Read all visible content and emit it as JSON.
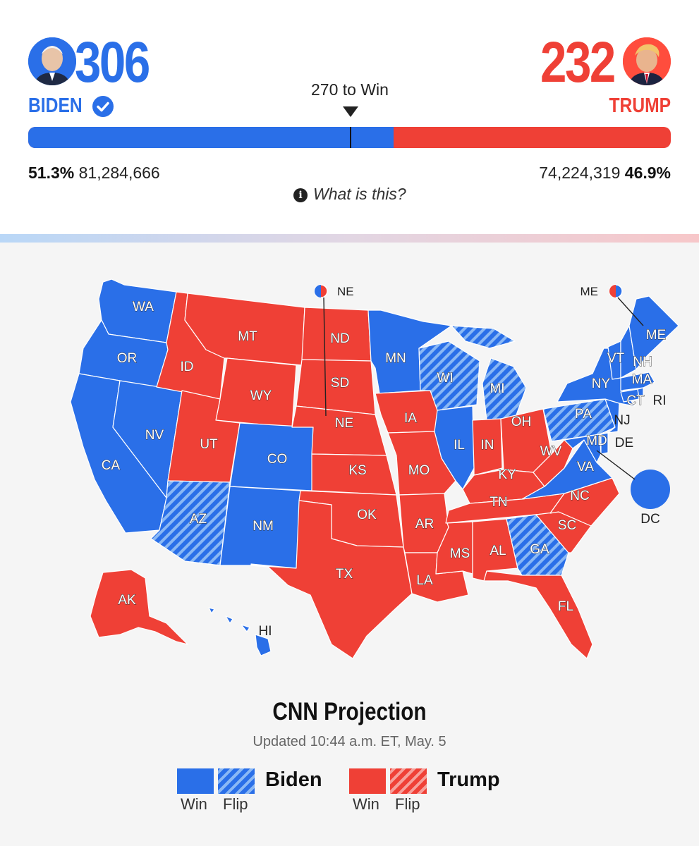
{
  "biden": {
    "electoral_votes": "306",
    "name": "BIDEN",
    "percent": "51.3%",
    "votes": "81,284,666",
    "color": "#2a6fe8",
    "winner_icon": "check-circle-icon"
  },
  "trump": {
    "electoral_votes": "232",
    "name": "TRUMP",
    "percent": "46.9%",
    "votes": "74,224,319",
    "color": "#ef4036"
  },
  "threshold": {
    "label": "270 to Win",
    "value": 270,
    "total": 538
  },
  "info_link": "What is this?",
  "map": {
    "states": [
      {
        "abbr": "WA",
        "winner": "biden",
        "flip": false
      },
      {
        "abbr": "OR",
        "winner": "biden",
        "flip": false
      },
      {
        "abbr": "CA",
        "winner": "biden",
        "flip": false
      },
      {
        "abbr": "NV",
        "winner": "biden",
        "flip": false
      },
      {
        "abbr": "ID",
        "winner": "trump",
        "flip": false
      },
      {
        "abbr": "MT",
        "winner": "trump",
        "flip": false
      },
      {
        "abbr": "WY",
        "winner": "trump",
        "flip": false
      },
      {
        "abbr": "UT",
        "winner": "trump",
        "flip": false
      },
      {
        "abbr": "AZ",
        "winner": "biden",
        "flip": true
      },
      {
        "abbr": "CO",
        "winner": "biden",
        "flip": false
      },
      {
        "abbr": "NM",
        "winner": "biden",
        "flip": false
      },
      {
        "abbr": "ND",
        "winner": "trump",
        "flip": false
      },
      {
        "abbr": "SD",
        "winner": "trump",
        "flip": false
      },
      {
        "abbr": "NE",
        "winner": "trump",
        "flip": false
      },
      {
        "abbr": "KS",
        "winner": "trump",
        "flip": false
      },
      {
        "abbr": "OK",
        "winner": "trump",
        "flip": false
      },
      {
        "abbr": "TX",
        "winner": "trump",
        "flip": false
      },
      {
        "abbr": "MN",
        "winner": "biden",
        "flip": false
      },
      {
        "abbr": "IA",
        "winner": "trump",
        "flip": false
      },
      {
        "abbr": "MO",
        "winner": "trump",
        "flip": false
      },
      {
        "abbr": "AR",
        "winner": "trump",
        "flip": false
      },
      {
        "abbr": "LA",
        "winner": "trump",
        "flip": false
      },
      {
        "abbr": "WI",
        "winner": "biden",
        "flip": true
      },
      {
        "abbr": "IL",
        "winner": "biden",
        "flip": false
      },
      {
        "abbr": "MI",
        "winner": "biden",
        "flip": true
      },
      {
        "abbr": "IN",
        "winner": "trump",
        "flip": false
      },
      {
        "abbr": "OH",
        "winner": "trump",
        "flip": false
      },
      {
        "abbr": "KY",
        "winner": "trump",
        "flip": false
      },
      {
        "abbr": "TN",
        "winner": "trump",
        "flip": false
      },
      {
        "abbr": "MS",
        "winner": "trump",
        "flip": false
      },
      {
        "abbr": "AL",
        "winner": "trump",
        "flip": false
      },
      {
        "abbr": "GA",
        "winner": "biden",
        "flip": true
      },
      {
        "abbr": "FL",
        "winner": "trump",
        "flip": false
      },
      {
        "abbr": "SC",
        "winner": "trump",
        "flip": false
      },
      {
        "abbr": "NC",
        "winner": "trump",
        "flip": false
      },
      {
        "abbr": "VA",
        "winner": "biden",
        "flip": false
      },
      {
        "abbr": "WV",
        "winner": "trump",
        "flip": false
      },
      {
        "abbr": "PA",
        "winner": "biden",
        "flip": true
      },
      {
        "abbr": "NY",
        "winner": "biden",
        "flip": false
      },
      {
        "abbr": "VT",
        "winner": "biden",
        "flip": false
      },
      {
        "abbr": "NH",
        "winner": "biden",
        "flip": false
      },
      {
        "abbr": "ME",
        "winner": "biden",
        "flip": false
      },
      {
        "abbr": "MA",
        "winner": "biden",
        "flip": false
      },
      {
        "abbr": "CT",
        "winner": "biden",
        "flip": false
      },
      {
        "abbr": "RI",
        "winner": "biden",
        "flip": false
      },
      {
        "abbr": "NJ",
        "winner": "biden",
        "flip": false
      },
      {
        "abbr": "DE",
        "winner": "biden",
        "flip": false
      },
      {
        "abbr": "MD",
        "winner": "biden",
        "flip": false
      },
      {
        "abbr": "DC",
        "winner": "biden",
        "flip": false
      },
      {
        "abbr": "AK",
        "winner": "trump",
        "flip": false
      },
      {
        "abbr": "HI",
        "winner": "biden",
        "flip": false
      }
    ],
    "split_districts": [
      {
        "abbr": "NE",
        "split": true
      },
      {
        "abbr": "ME",
        "split": true
      }
    ]
  },
  "projection": {
    "title": "CNN Projection",
    "updated": "Updated 10:44 a.m. ET, May. 5"
  },
  "legend": {
    "biden_label": "Biden",
    "trump_label": "Trump",
    "win_label": "Win",
    "flip_label": "Flip"
  }
}
